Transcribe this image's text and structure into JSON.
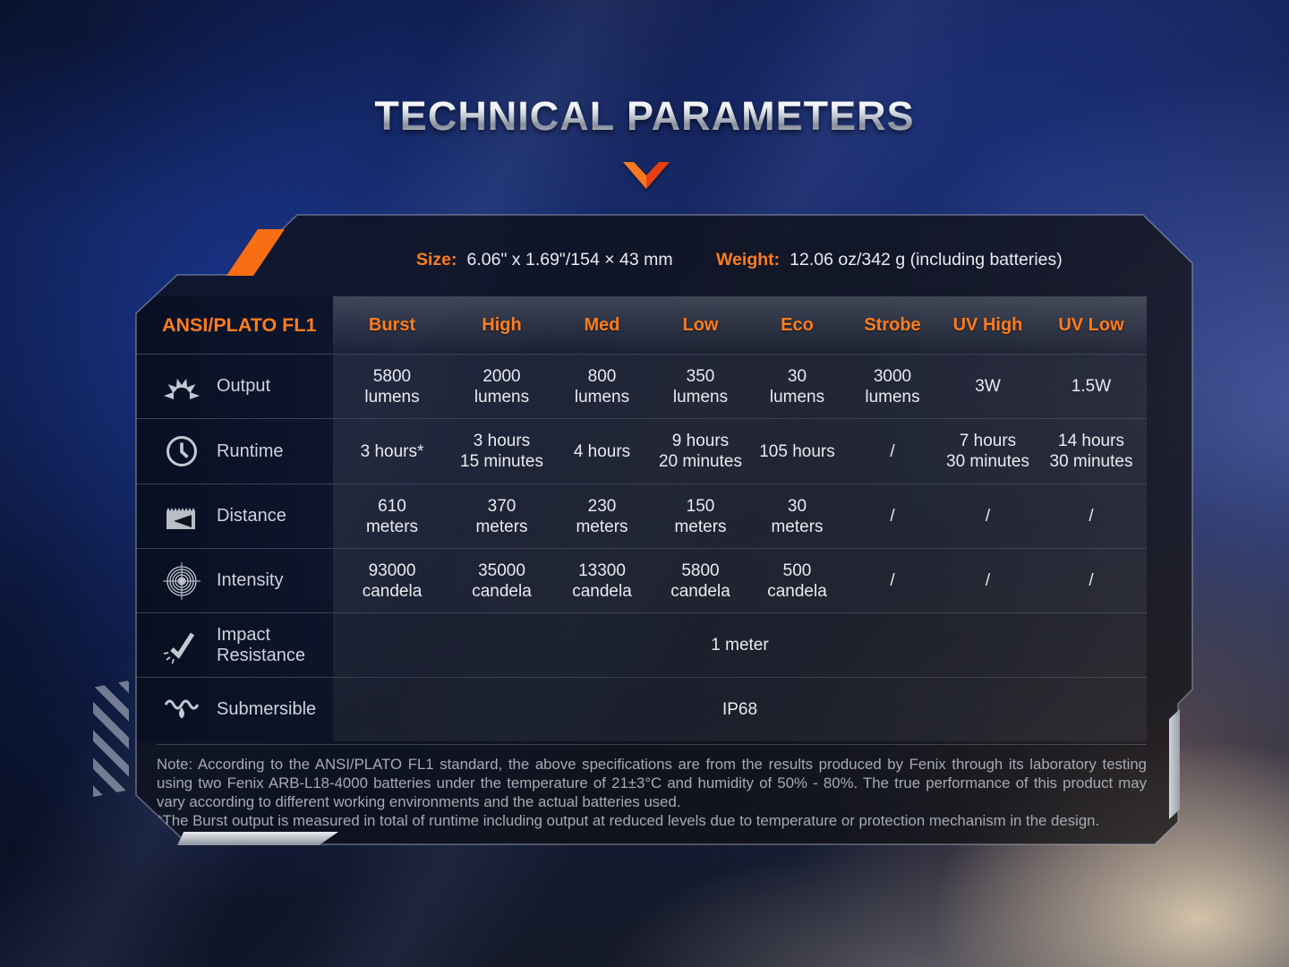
{
  "title": "TECHNICAL PARAMETERS",
  "colors": {
    "accent_orange": "#ff7c1e",
    "title_silver": "#c9ced6",
    "chevron_left": "#f57a1f",
    "chevron_right": "#e63f12"
  },
  "dimensions": {
    "size_label": "Size:",
    "size_value": "6.06\" x 1.69\"/154 × 43 mm",
    "weight_label": "Weight:",
    "weight_value": "12.06 oz/342 g (including batteries)"
  },
  "table": {
    "corner_label": "ANSI/PLATO FL1",
    "columns": [
      "Burst",
      "High",
      "Med",
      "Low",
      "Eco",
      "Strobe",
      "UV High",
      "UV Low"
    ],
    "rows": [
      {
        "label": "Output",
        "icon": "brightness-icon",
        "cells": [
          "5800\nlumens",
          "2000\nlumens",
          "800\nlumens",
          "350\nlumens",
          "30\nlumens",
          "3000\nlumens",
          "3W",
          "1.5W"
        ]
      },
      {
        "label": "Runtime",
        "icon": "clock-icon",
        "cells": [
          "3 hours*",
          "3 hours\n15 minutes",
          "4 hours",
          "9 hours\n20 minutes",
          "105 hours",
          "/",
          "7 hours\n30 minutes",
          "14 hours\n30 minutes"
        ]
      },
      {
        "label": "Distance",
        "icon": "distance-icon",
        "cells": [
          "610\nmeters",
          "370\nmeters",
          "230\nmeters",
          "150\nmeters",
          "30\nmeters",
          "/",
          "/",
          "/"
        ]
      },
      {
        "label": "Intensity",
        "icon": "intensity-icon",
        "cells": [
          "93000\ncandela",
          "35000\ncandela",
          "13300\ncandela",
          "5800\ncandela",
          "500\ncandela",
          "/",
          "/",
          "/"
        ]
      },
      {
        "label": "Impact\nResistance",
        "icon": "impact-icon",
        "span_value": "1 meter"
      },
      {
        "label": "Submersible",
        "icon": "water-icon",
        "span_value": "IP68"
      }
    ]
  },
  "note": {
    "main": "Note: According to the ANSI/PLATO FL1 standard, the above specifications are from the results produced by Fenix through its laboratory testing using two Fenix ARB-L18-4000 batteries under the temperature of 21±3°C and humidity of 50% - 80%. The true performance of this product may vary according to different working environments and the actual batteries used.",
    "burst": "*The Burst output is measured in total of runtime including output at reduced levels due to temperature or protection mechanism in the design."
  }
}
